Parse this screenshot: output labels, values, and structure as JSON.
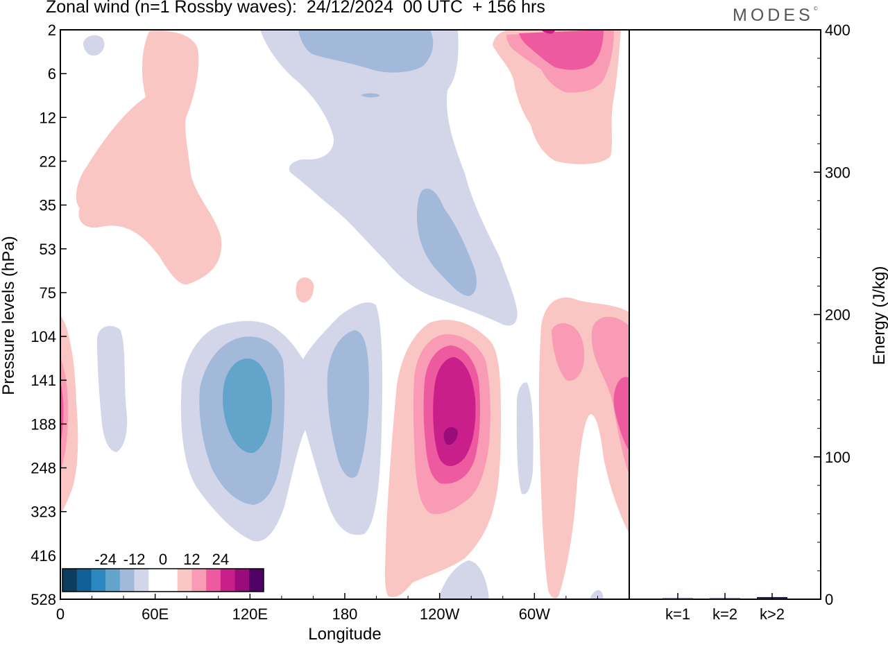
{
  "header": {
    "title": "Zonal wind (n=1 Rossby waves):  24/12/2024  00 UTC  + 156 hrs",
    "brand": "MODES",
    "brand_mark": "©"
  },
  "chart_data": [
    {
      "type": "heatmap",
      "title": "Zonal wind (n=1 Rossby waves):  24/12/2024  00 UTC  + 156 hrs",
      "xlabel": "Longitude",
      "ylabel": "Pressure levels (hPa)",
      "x_ticks": [
        "0",
        "60E",
        "120E",
        "180",
        "120W",
        "60W"
      ],
      "x_tick_values": [
        0,
        60,
        120,
        180,
        240,
        300
      ],
      "xlim": [
        0,
        360
      ],
      "y_ticks": [
        "2",
        "6",
        "12",
        "22",
        "35",
        "53",
        "75",
        "104",
        "141",
        "188",
        "248",
        "323",
        "416",
        "528"
      ],
      "y_scale": "pressure levels, top = 2 hPa, bottom = 528 hPa",
      "colorbar": {
        "tick_labels": [
          "-24",
          "-12",
          "0",
          "12",
          "24"
        ],
        "tick_values": [
          -24,
          -12,
          0,
          12,
          24
        ],
        "colors": [
          "#0d3d5e",
          "#105f96",
          "#2c86bf",
          "#63a4cb",
          "#a3b9da",
          "#d3d6e8",
          "#ffffff",
          "#ffffff",
          "#f9c6c3",
          "#f99bb5",
          "#ee5aa0",
          "#c81f8a",
          "#9a0c7c",
          "#4e0266"
        ]
      },
      "features": [
        {
          "sign": "positive",
          "max_level": 24,
          "lon_center": 250,
          "pressure_center": 180
        },
        {
          "sign": "negative",
          "min_level": -18,
          "lon_center": 117,
          "pressure_center": 170
        },
        {
          "sign": "negative",
          "min_level": -12,
          "lon_center": 182,
          "pressure_center": 170
        },
        {
          "sign": "positive",
          "max_level": 18,
          "lon_center": 310,
          "pressure_center": 3
        }
      ]
    },
    {
      "type": "bar",
      "ylabel": "Energy (J/kg)",
      "categories": [
        "k=1",
        "k=2",
        "k>2"
      ],
      "values": [
        0.5,
        0.5,
        1.5
      ],
      "ylim": [
        0,
        400
      ],
      "y_ticks": [
        "0",
        "100",
        "200",
        "300",
        "400"
      ],
      "y_tick_values": [
        0,
        100,
        200,
        300,
        400
      ]
    }
  ]
}
